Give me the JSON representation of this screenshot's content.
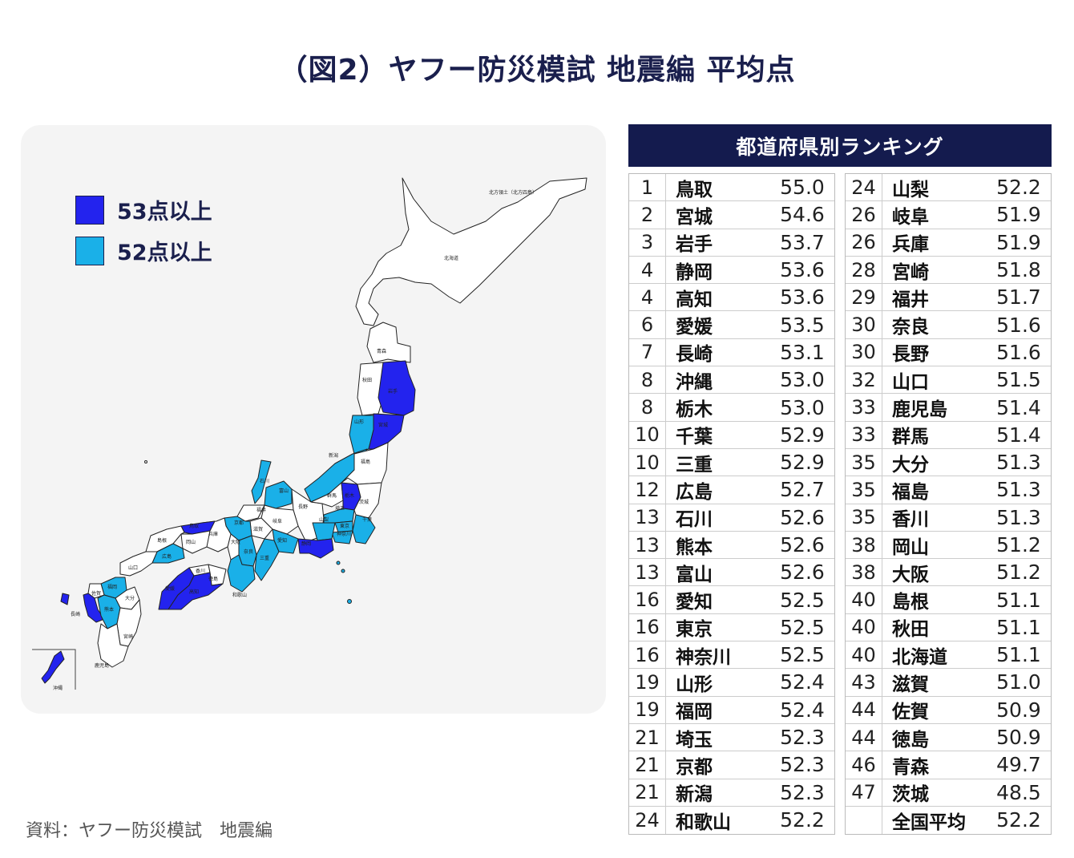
{
  "title": "（図2）ヤフー防災模試 地震編 平均点",
  "colors": {
    "high": "#2323ee",
    "mid": "#1ab0e8",
    "other": "#ffffff",
    "header_bg": "#141b4e"
  },
  "legend": [
    {
      "label": "53点以上",
      "color": "#2323ee"
    },
    {
      "label": "52点以上",
      "color": "#1ab0e8"
    }
  ],
  "map": {
    "labels": {
      "hokkaido": "北海道",
      "northern_territories": "北方領土（北方四島）",
      "aomori": "青森",
      "akita": "秋田",
      "iwate": "岩手",
      "yamagata": "山形",
      "miyagi": "宮城",
      "niigata": "新潟",
      "fukushima": "福島",
      "ishikawa": "石川",
      "toyama": "富山",
      "tochigi": "栃木",
      "gunma": "群馬",
      "ibaraki": "茨城",
      "nagano": "長野",
      "fukui": "福井",
      "gifu": "岐阜",
      "saitama": "埼玉",
      "tokyo": "東京",
      "yamanashi": "山梨",
      "chiba": "千葉",
      "kanagawa": "神奈川",
      "shizuoka": "静岡",
      "aichi": "愛知",
      "shiga": "滋賀",
      "mie": "三重",
      "kyoto": "京都",
      "osaka": "大阪",
      "nara": "奈良",
      "hyogo": "兵庫",
      "wakayama": "和歌山",
      "tottori": "鳥取",
      "shimane": "島根",
      "okayama": "岡山",
      "hiroshima": "広島",
      "yamaguchi": "山口",
      "kagawa": "香川",
      "tokushima": "徳島",
      "ehime": "愛媛",
      "kochi": "高知",
      "fukuoka": "福岡",
      "saga": "佐賀",
      "nagasaki": "長崎",
      "kumamoto": "熊本",
      "oita": "大分",
      "miyazaki": "宮崎",
      "kagoshima": "鹿児島",
      "okinawa": "沖縄"
    }
  },
  "ranking": {
    "header": "都道府県別ランキング",
    "left": [
      {
        "rank": "1",
        "name": "鳥取",
        "score": "55.0"
      },
      {
        "rank": "2",
        "name": "宮城",
        "score": "54.6"
      },
      {
        "rank": "3",
        "name": "岩手",
        "score": "53.7"
      },
      {
        "rank": "4",
        "name": "静岡",
        "score": "53.6"
      },
      {
        "rank": "4",
        "name": "高知",
        "score": "53.6"
      },
      {
        "rank": "6",
        "name": "愛媛",
        "score": "53.5"
      },
      {
        "rank": "7",
        "name": "長崎",
        "score": "53.1"
      },
      {
        "rank": "8",
        "name": "沖縄",
        "score": "53.0"
      },
      {
        "rank": "8",
        "name": "栃木",
        "score": "53.0"
      },
      {
        "rank": "10",
        "name": "千葉",
        "score": "52.9"
      },
      {
        "rank": "10",
        "name": "三重",
        "score": "52.9"
      },
      {
        "rank": "12",
        "name": "広島",
        "score": "52.7"
      },
      {
        "rank": "13",
        "name": "石川",
        "score": "52.6"
      },
      {
        "rank": "13",
        "name": "熊本",
        "score": "52.6"
      },
      {
        "rank": "13",
        "name": "富山",
        "score": "52.6"
      },
      {
        "rank": "16",
        "name": "愛知",
        "score": "52.5"
      },
      {
        "rank": "16",
        "name": "東京",
        "score": "52.5"
      },
      {
        "rank": "16",
        "name": "神奈川",
        "score": "52.5"
      },
      {
        "rank": "19",
        "name": "山形",
        "score": "52.4"
      },
      {
        "rank": "19",
        "name": "福岡",
        "score": "52.4"
      },
      {
        "rank": "21",
        "name": "埼玉",
        "score": "52.3"
      },
      {
        "rank": "21",
        "name": "京都",
        "score": "52.3"
      },
      {
        "rank": "21",
        "name": "新潟",
        "score": "52.3"
      },
      {
        "rank": "24",
        "name": "和歌山",
        "score": "52.2"
      }
    ],
    "right": [
      {
        "rank": "24",
        "name": "山梨",
        "score": "52.2"
      },
      {
        "rank": "26",
        "name": "岐阜",
        "score": "51.9"
      },
      {
        "rank": "26",
        "name": "兵庫",
        "score": "51.9"
      },
      {
        "rank": "28",
        "name": "宮崎",
        "score": "51.8"
      },
      {
        "rank": "29",
        "name": "福井",
        "score": "51.7"
      },
      {
        "rank": "30",
        "name": "奈良",
        "score": "51.6"
      },
      {
        "rank": "30",
        "name": "長野",
        "score": "51.6"
      },
      {
        "rank": "32",
        "name": "山口",
        "score": "51.5"
      },
      {
        "rank": "33",
        "name": "鹿児島",
        "score": "51.4"
      },
      {
        "rank": "33",
        "name": "群馬",
        "score": "51.4"
      },
      {
        "rank": "35",
        "name": "大分",
        "score": "51.3"
      },
      {
        "rank": "35",
        "name": "福島",
        "score": "51.3"
      },
      {
        "rank": "35",
        "name": "香川",
        "score": "51.3"
      },
      {
        "rank": "38",
        "name": "岡山",
        "score": "51.2"
      },
      {
        "rank": "38",
        "name": "大阪",
        "score": "51.2"
      },
      {
        "rank": "40",
        "name": "島根",
        "score": "51.1"
      },
      {
        "rank": "40",
        "name": "秋田",
        "score": "51.1"
      },
      {
        "rank": "40",
        "name": "北海道",
        "score": "51.1"
      },
      {
        "rank": "43",
        "name": "滋賀",
        "score": "51.0"
      },
      {
        "rank": "44",
        "name": "佐賀",
        "score": "50.9"
      },
      {
        "rank": "44",
        "name": "徳島",
        "score": "50.9"
      },
      {
        "rank": "46",
        "name": "青森",
        "score": "49.7"
      },
      {
        "rank": "47",
        "name": "茨城",
        "score": "48.5"
      },
      {
        "rank": "",
        "name": "全国平均",
        "score": "52.2"
      }
    ]
  },
  "source": "資料：ヤフー防災模試　地震編"
}
